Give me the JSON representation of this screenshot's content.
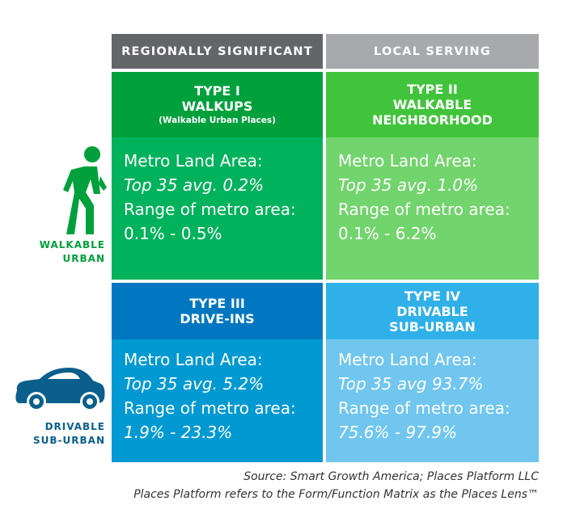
{
  "columns": [
    "REGIONALLY SIGNIFICANT",
    "LOCAL SERVING"
  ],
  "rows": [
    {
      "label": [
        "WALKABLE",
        "URBAN"
      ],
      "icon": "pedestrian-icon",
      "color": "#00a03c"
    },
    {
      "label": [
        "DRIVABLE",
        "SUB-URBAN"
      ],
      "icon": "car-icon",
      "color": "#0a5f8c"
    }
  ],
  "cells": [
    {
      "title": [
        "TYPE I",
        "WALKUPS"
      ],
      "subtitle": "(Walkable Urban Places)",
      "line1": "Metro Land Area:",
      "line2": "Top 35 avg. 0.2%",
      "line3": "Range of metro area:",
      "line4": "0.1% - 0.5%",
      "head_color": "#00a03c",
      "body_color": "#00b25c"
    },
    {
      "title": [
        "TYPE II",
        "WALKABLE",
        "NEIGHBORHOOD"
      ],
      "line1": "Metro Land Area:",
      "line2": "Top 35 avg. 1.0%",
      "line3": "Range of metro area:",
      "line4": "0.1% - 6.2%",
      "head_color": "#41c43c",
      "body_color": "#72d46c"
    },
    {
      "title": [
        "TYPE III",
        "DRIVE-INS"
      ],
      "line1": "Metro Land Area:",
      "line2": "Top 35 avg. 5.2%",
      "line3": "Range of metro area:",
      "line4": "1.9% - 23.3%",
      "head_color": "#0077c0",
      "body_color": "#0099d2"
    },
    {
      "title": [
        "TYPE IV",
        "DRIVABLE",
        "SUB-URBAN"
      ],
      "line1": "Metro Land Area:",
      "line2": "Top 35 avg 93.7%",
      "line3": "Range of metro area:",
      "line4": "75.6% - 97.9%",
      "head_color": "#30b0e8",
      "body_color": "#70c6ee"
    }
  ],
  "source": [
    "Source: Smart Growth America; Places Platform LLC",
    "Places Platform refers to the Form/Function Matrix as the Places Lens™"
  ]
}
